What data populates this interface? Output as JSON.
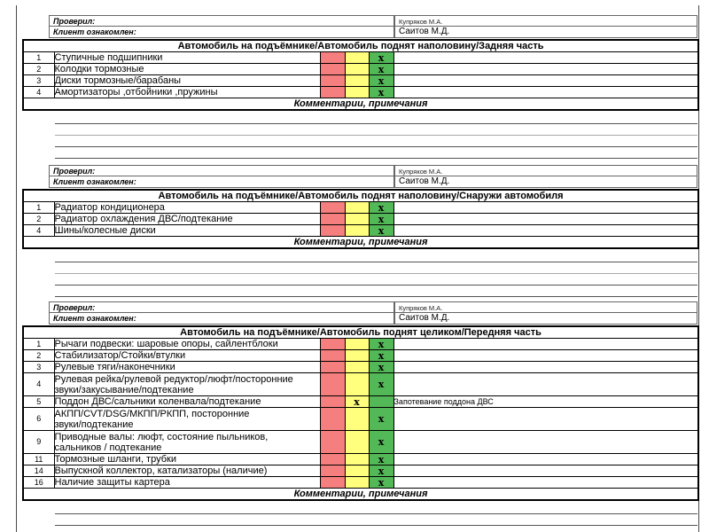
{
  "page": {
    "checked_by_label": "Проверил:",
    "checked_by_value": "Купряков М.А.",
    "client_informed_label": "Клиент ознакомлен:",
    "client_informed_value": "Саитов М.Д.",
    "comments_label": "Комментарии, примечания",
    "colors": {
      "red": "#f57e7e",
      "yellow": "#ffff7d",
      "green": "#53b857"
    }
  },
  "sections": [
    {
      "title": "Автомобиль на подъёмнике/Автомобиль поднят наполовину/Задняя часть",
      "items": [
        {
          "num": "1",
          "label": "Ступичные подшипники",
          "red": "",
          "yellow": "",
          "green": "x",
          "note": ""
        },
        {
          "num": "2",
          "label": "Колодки тормозные",
          "red": "",
          "yellow": "",
          "green": "x",
          "note": ""
        },
        {
          "num": "3",
          "label": "Диски тормозные/барабаны",
          "red": "",
          "yellow": "",
          "green": "x",
          "note": ""
        },
        {
          "num": "4",
          "label": "Амортизаторы ,отбойники ,пружины",
          "red": "",
          "yellow": "",
          "green": "x",
          "note": ""
        }
      ]
    },
    {
      "title": "Автомобиль на подъёмнике/Автомобиль поднят наполовину/Снаружи автомобиля",
      "items": [
        {
          "num": "1",
          "label": "Радиатор кондиционера",
          "red": "",
          "yellow": "",
          "green": "x",
          "note": ""
        },
        {
          "num": "2",
          "label": "Радиатор охлаждения ДВС/подтекание",
          "red": "",
          "yellow": "",
          "green": "x",
          "note": ""
        },
        {
          "num": "4",
          "label": "Шины/колесные диски",
          "red": "",
          "yellow": "",
          "green": "x",
          "note": ""
        }
      ]
    },
    {
      "title": "Автомобиль на подъёмнике/Автомобиль поднят целиком/Передняя часть",
      "items": [
        {
          "num": "1",
          "label": "Рычаги подвески: шаровые опоры, сайлентблоки",
          "red": "",
          "yellow": "",
          "green": "x",
          "note": ""
        },
        {
          "num": "2",
          "label": "Стабилизатор/Стойки/втулки",
          "red": "",
          "yellow": "",
          "green": "x",
          "note": ""
        },
        {
          "num": "3",
          "label": "Рулевые тяги/наконечники",
          "red": "",
          "yellow": "",
          "green": "x",
          "note": ""
        },
        {
          "num": "4",
          "label": "Рулевая рейка/рулевой редуктор/люфт/посторонние\nзвуки/закусывание/подтекание",
          "red": "",
          "yellow": "",
          "green": "x",
          "note": ""
        },
        {
          "num": "5",
          "label": "Поддон ДВС/сальники коленвала/подтекание",
          "red": "",
          "yellow": "x",
          "green": "",
          "note": "Запотевание поддона ДВС"
        },
        {
          "num": "6",
          "label": "АКПП/CVT/DSG/МКПП/РКПП, посторонние\nзвуки/подтекание",
          "red": "",
          "yellow": "",
          "green": "x",
          "note": ""
        },
        {
          "num": "9",
          "label": "Приводные валы: люфт, состояние пыльников,\nсальников / подтекание",
          "red": "",
          "yellow": "",
          "green": "x",
          "note": ""
        },
        {
          "num": "11",
          "label": "Тормозные шланги, трубки",
          "red": "",
          "yellow": "",
          "green": "x",
          "note": ""
        },
        {
          "num": "14",
          "label": "Выпускной коллектор, катализаторы (наличие)",
          "red": "",
          "yellow": "",
          "green": "x",
          "note": ""
        },
        {
          "num": "16",
          "label": "Наличие защиты картера",
          "red": "",
          "yellow": "",
          "green": "x",
          "note": ""
        }
      ]
    }
  ]
}
